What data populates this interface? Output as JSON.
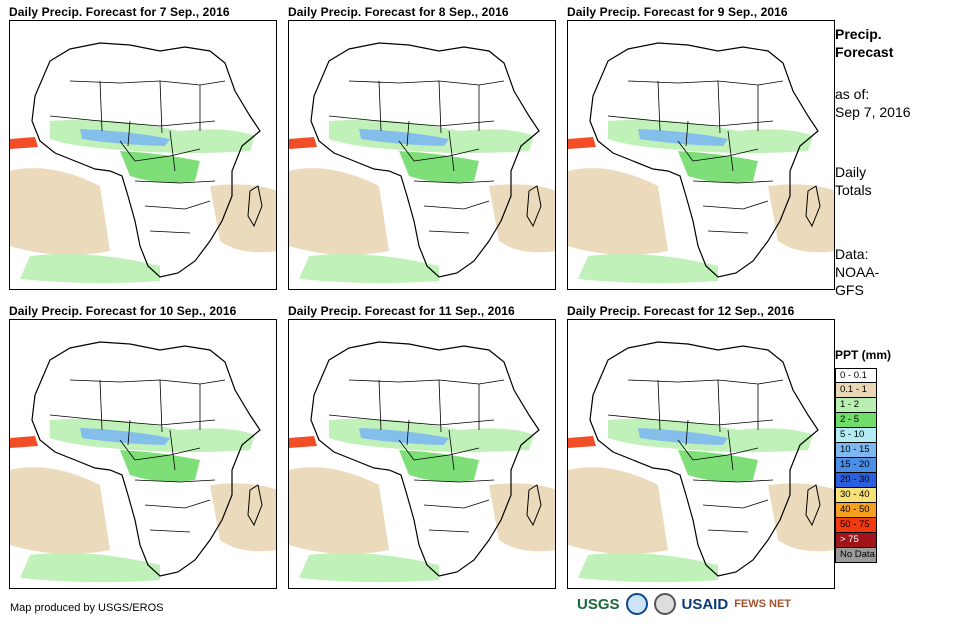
{
  "panels": [
    {
      "title": "Daily Precip. Forecast for 7 Sep., 2016"
    },
    {
      "title": "Daily Precip. Forecast for 8 Sep., 2016"
    },
    {
      "title": "Daily Precip. Forecast for 9 Sep., 2016"
    },
    {
      "title": "Daily Precip. Forecast for 10 Sep., 2016"
    },
    {
      "title": "Daily Precip. Forecast for 11 Sep., 2016"
    },
    {
      "title": "Daily Precip. Forecast for 12 Sep., 2016"
    }
  ],
  "sidebar": {
    "title_line1": "Precip.",
    "title_line2": "Forecast",
    "asof_line1": "as of:",
    "asof_line2": "Sep 7, 2016",
    "totals_line1": "Daily",
    "totals_line2": "Totals",
    "data_line1": "Data:",
    "data_line2": "NOAA-",
    "data_line3": "GFS"
  },
  "legend": {
    "title": "PPT (mm)",
    "items": [
      {
        "label": "0 - 0.1",
        "color": "#ffffff"
      },
      {
        "label": "0.1 - 1",
        "color": "#e9d7b5"
      },
      {
        "label": "1 - 2",
        "color": "#b9f0b1"
      },
      {
        "label": "2 - 5",
        "color": "#70dc6a"
      },
      {
        "label": "5 - 10",
        "color": "#b3ecf4"
      },
      {
        "label": "10 - 15",
        "color": "#7db8f0"
      },
      {
        "label": "15 - 20",
        "color": "#4a8fe8"
      },
      {
        "label": "20 - 30",
        "color": "#2a5fe0"
      },
      {
        "label": "30 - 40",
        "color": "#f7e27a"
      },
      {
        "label": "40 - 50",
        "color": "#f5a020"
      },
      {
        "label": "50 - 75",
        "color": "#f03a10"
      },
      {
        "label": "> 75",
        "color": "#a0141a"
      },
      {
        "label": "No Data",
        "color": "#9a9a9a"
      }
    ]
  },
  "footer": {
    "credit": "Map produced by USGS/EROS"
  },
  "logos": {
    "usgs": "USGS",
    "usaid": "USAID",
    "fews": "FEWS NET"
  }
}
